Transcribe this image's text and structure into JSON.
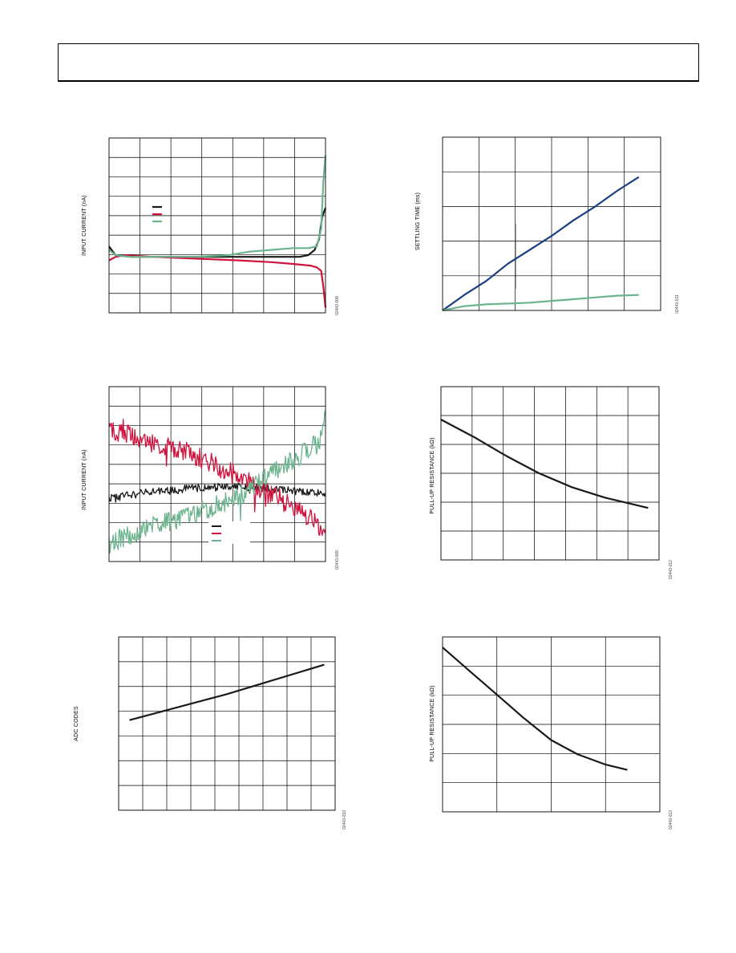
{
  "charts": [
    {
      "ylabel": "INPUT CURRENT (nA)",
      "fig_id": "02443-008",
      "chart_data": {
        "type": "line",
        "ylabel": "INPUT CURRENT (nA)",
        "xlim": [
          0,
          100
        ],
        "ylim": [
          0,
          100
        ],
        "grid": true,
        "xdiv": 7,
        "ydiv": 9,
        "legend_position": "center-left",
        "series": [
          {
            "color": "#1a1a1a",
            "x": [
              0,
              3,
              10,
              20,
              40,
              60,
              80,
              88,
              92,
              95,
              97,
              98.5,
              100
            ],
            "y": [
              38,
              33,
              32,
              32,
              32,
              32,
              32,
              32,
              33,
              36,
              42,
              55,
              60
            ]
          },
          {
            "color": "#d0123c",
            "x": [
              0,
              3,
              8,
              20,
              40,
              60,
              75,
              85,
              93,
              96,
              98,
              99,
              100
            ],
            "y": [
              30,
              32,
              33,
              32,
              31,
              30,
              29,
              28,
              27,
              26,
              24,
              15,
              3
            ]
          },
          {
            "color": "#6cb48e",
            "x": [
              0,
              3,
              10,
              20,
              40,
              55,
              65,
              75,
              85,
              92,
              96,
              98,
              99,
              100
            ],
            "y": [
              36,
              33,
              32,
              32,
              32,
              33,
              35,
              36,
              37,
              37,
              38,
              48,
              75,
              90
            ]
          }
        ]
      }
    },
    {
      "ylabel": "SETTLING TIME (ms)",
      "fig_id": "02443-011",
      "chart_data": {
        "type": "line",
        "ylabel": "SETTLING TIME (ms)",
        "xlim": [
          0,
          100
        ],
        "ylim": [
          0,
          100
        ],
        "grid": true,
        "xdiv": 6,
        "ydiv": 5,
        "series": [
          {
            "color": "#1a3f80",
            "x": [
              0,
              10,
              20,
              30,
              40,
              50,
              60,
              70,
              80,
              90
            ],
            "y": [
              0,
              9,
              17,
              27,
              35,
              43,
              52,
              60,
              69,
              77
            ]
          },
          {
            "color": "#6cb48e",
            "x": [
              0,
              10,
              20,
              30,
              40,
              50,
              60,
              70,
              80,
              90
            ],
            "y": [
              0,
              2.5,
              3.5,
              4,
              4.5,
              5.5,
              6.5,
              7.5,
              8.5,
              9
            ]
          }
        ]
      }
    },
    {
      "ylabel": "INPUT CURRENT (nA)",
      "fig_id": "02443-009",
      "chart_data": {
        "type": "line",
        "ylabel": "INPUT CURRENT (nA)",
        "xlim": [
          0,
          100
        ],
        "ylim": [
          0,
          100
        ],
        "grid": true,
        "xdiv": 7,
        "ydiv": 9,
        "legend_position": "bottom-right",
        "series": [
          {
            "color": "#1a1a1a",
            "noise": 2.2,
            "x": [
              0,
              20,
              40,
              60,
              80,
              100
            ],
            "y": [
              36,
              40,
              42,
              43,
              41,
              39
            ]
          },
          {
            "color": "#d0123c",
            "noise": 6,
            "x": [
              0,
              15,
              30,
              45,
              60,
              75,
              90,
              97,
              100
            ],
            "y": [
              76,
              70,
              65,
              58,
              48,
              38,
              28,
              20,
              18
            ]
          },
          {
            "color": "#6cb48e",
            "noise": 6,
            "x": [
              0,
              15,
              30,
              45,
              60,
              70,
              80,
              90,
              97,
              100
            ],
            "y": [
              10,
              18,
              24,
              30,
              38,
              46,
              55,
              62,
              68,
              88
            ]
          }
        ]
      }
    },
    {
      "ylabel": "PULL-UP RESISTANCE (kΩ)",
      "fig_id": "02443-012",
      "chart_data": {
        "type": "line",
        "ylabel": "PULL-UP RESISTANCE (kΩ)",
        "xlim": [
          0,
          100
        ],
        "ylim": [
          0,
          100
        ],
        "grid": true,
        "xdiv": 7,
        "ydiv": 6,
        "series": [
          {
            "color": "#1a1a1a",
            "x": [
              0,
              15,
              30,
              45,
              60,
              75,
              85,
              95
            ],
            "y": [
              81,
              71,
              60,
              50,
              42,
              36,
              33,
              30
            ]
          }
        ]
      }
    },
    {
      "ylabel": "ADC CODES",
      "fig_id": "02443-010",
      "chart_data": {
        "type": "line",
        "ylabel": "ADC CODES",
        "xlim": [
          0,
          100
        ],
        "ylim": [
          0,
          100
        ],
        "grid": true,
        "xdiv": 9,
        "ydiv": 7,
        "series": [
          {
            "color": "#1a1a1a",
            "x": [
              5,
              50,
              95
            ],
            "y": [
              52,
              67,
              84
            ]
          }
        ]
      }
    },
    {
      "ylabel": "PULL-UP RESISTANCE (kΩ)",
      "fig_id": "02443-013",
      "chart_data": {
        "type": "line",
        "ylabel": "PULL-UP RESISTANCE (kΩ)",
        "xlim": [
          0,
          100
        ],
        "ylim": [
          0,
          100
        ],
        "grid": true,
        "xdiv": 4,
        "ydiv": 6,
        "series": [
          {
            "color": "#1a1a1a",
            "x": [
              0,
              12,
              25,
              37,
              50,
              62,
              75,
              85
            ],
            "y": [
              94,
              81,
              67,
              54,
              41,
              33,
              27,
              24
            ]
          }
        ]
      }
    }
  ]
}
